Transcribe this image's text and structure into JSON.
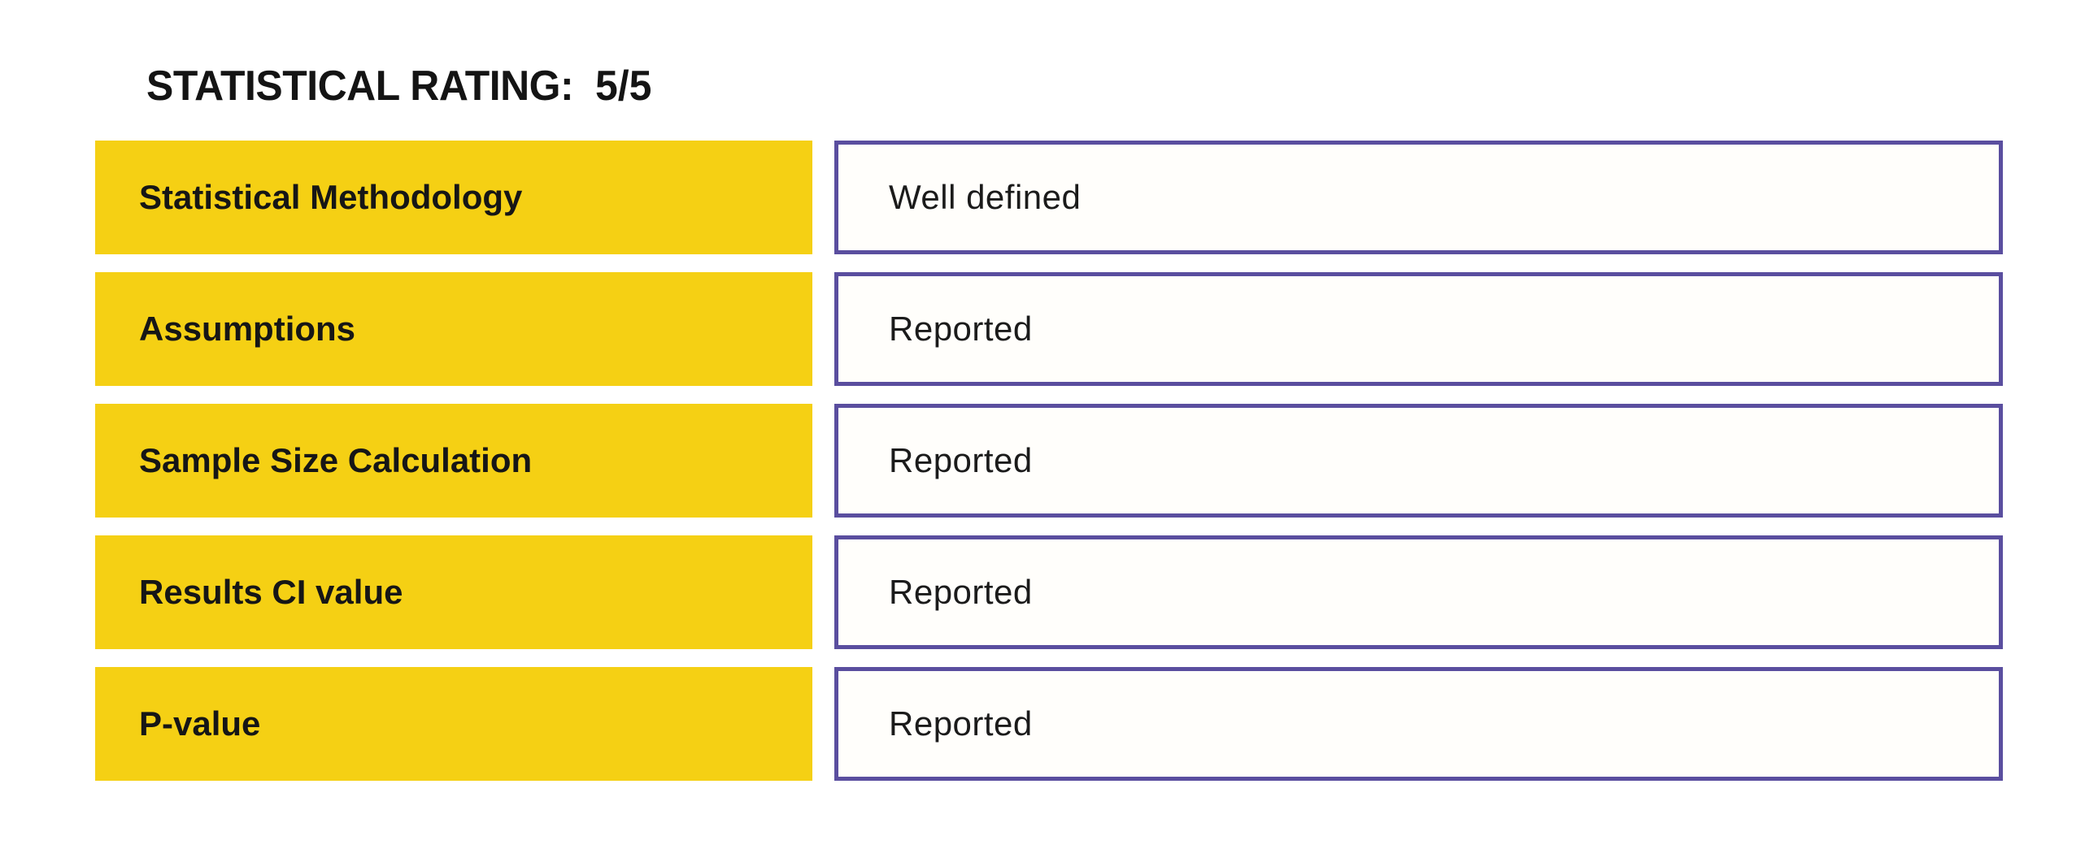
{
  "header": {
    "title_label": "STATISTICAL RATING:",
    "title_value": "5/5"
  },
  "rows": [
    {
      "label": "Statistical Methodology",
      "value": "Well defined"
    },
    {
      "label": "Assumptions",
      "value": "Reported"
    },
    {
      "label": "Sample Size Calculation",
      "value": "Reported"
    },
    {
      "label": "Results CI value",
      "value": "Reported"
    },
    {
      "label": "P-value",
      "value": "Reported"
    }
  ],
  "colors": {
    "label_background": "#F5D014",
    "value_border": "#5A4E9F",
    "value_background": "#FFFEFB",
    "text": "#1B1B1B",
    "page_background": "#FFFFFF"
  }
}
